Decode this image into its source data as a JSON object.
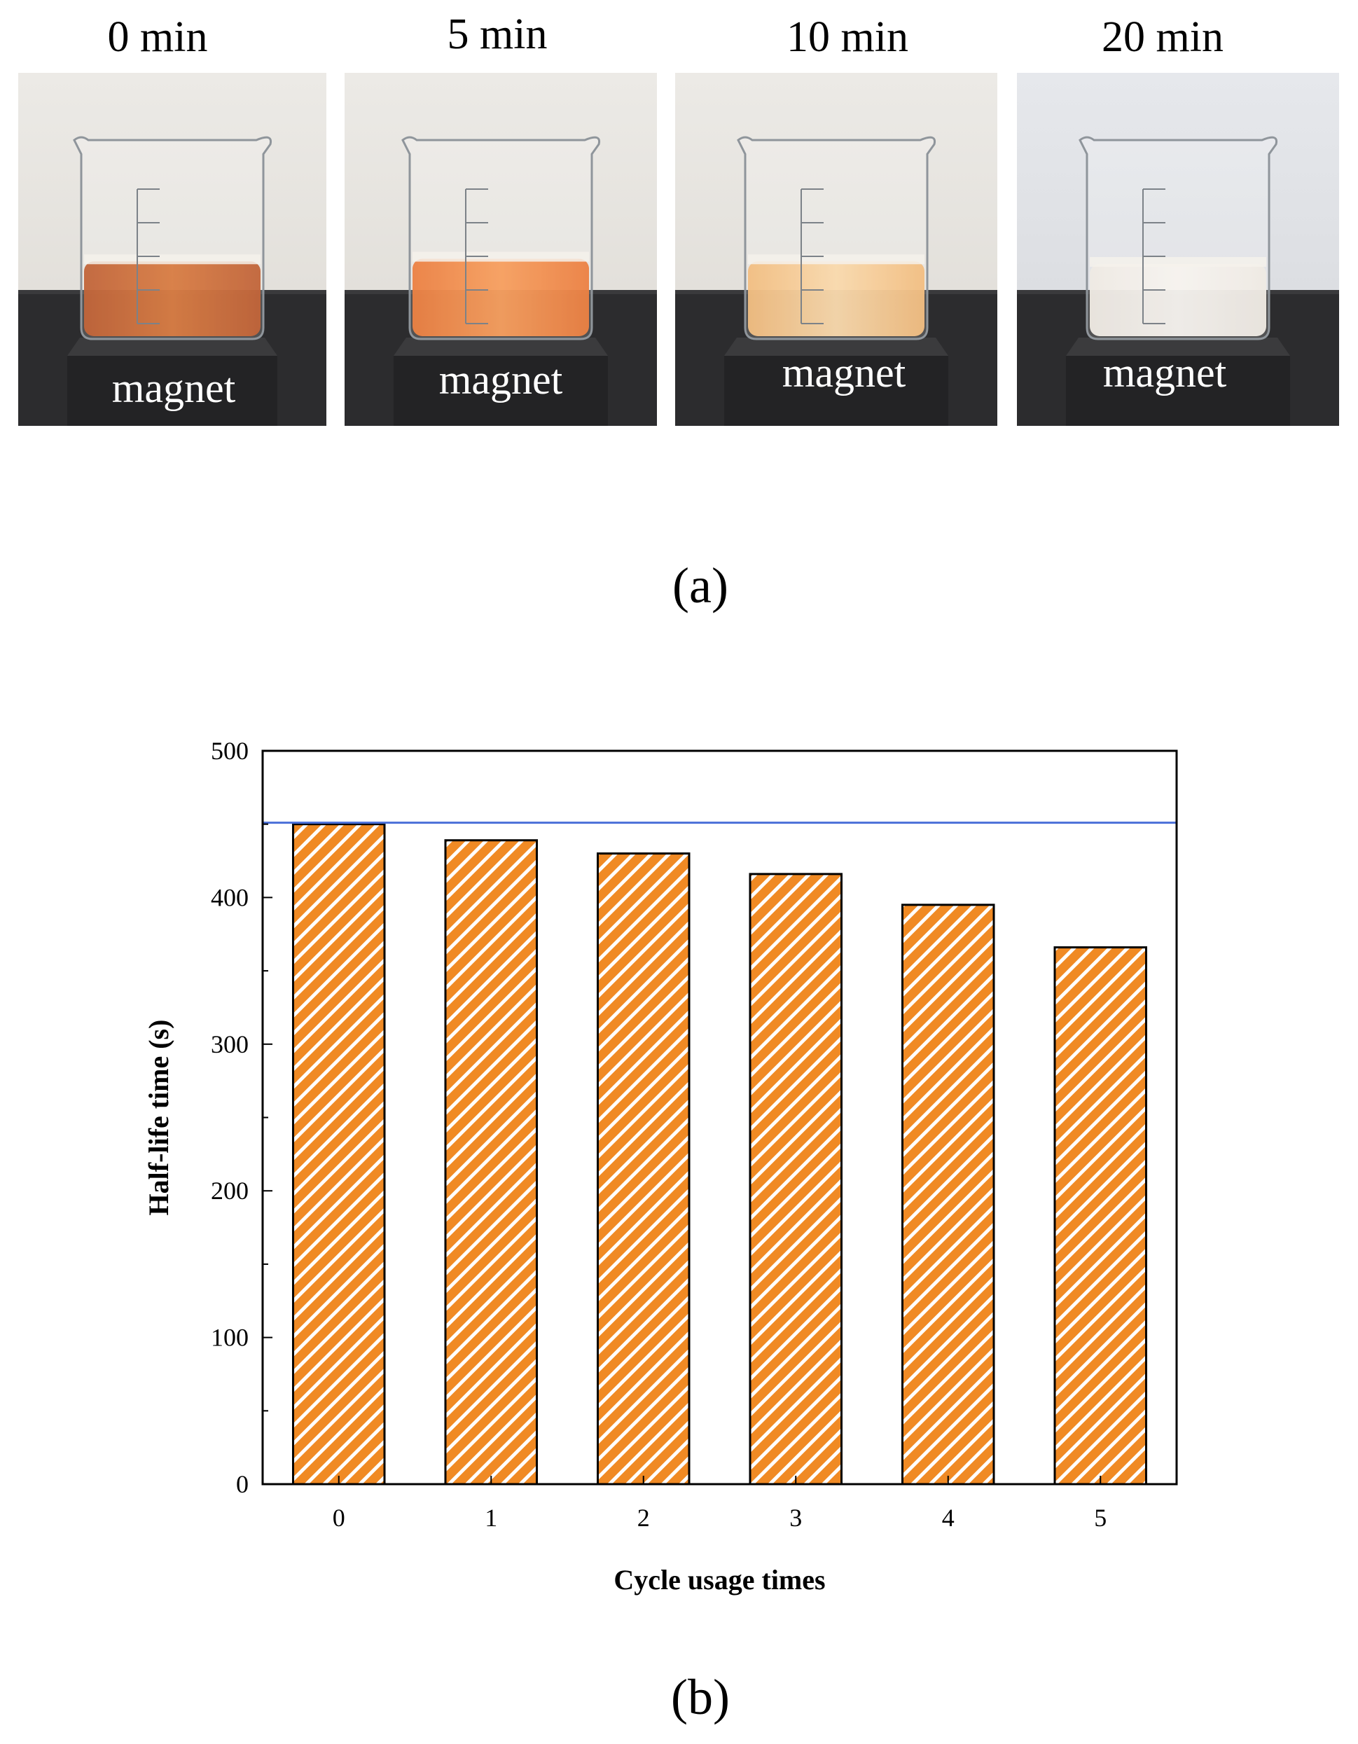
{
  "panel_a": {
    "label": "(a)",
    "photos": [
      {
        "time": "0 min",
        "magnet": "magnet",
        "liquid": "#b4430f",
        "liquid_light": "#d0601a",
        "level": 0.6
      },
      {
        "time": "5 min",
        "magnet": "magnet",
        "liquid": "#e8651a",
        "liquid_light": "#f58a3c",
        "level": 0.62
      },
      {
        "time": "10 min",
        "magnet": "magnet",
        "liquid": "#f0b066",
        "liquid_light": "#f8d19b",
        "level": 0.6
      },
      {
        "time": "20 min",
        "magnet": "magnet",
        "liquid": "#ece6de",
        "liquid_light": "#f5f1ec",
        "level": 0.58
      }
    ]
  },
  "panel_b": {
    "label": "(b)"
  },
  "chart_data": {
    "type": "bar",
    "categories": [
      "0",
      "1",
      "2",
      "3",
      "4",
      "5"
    ],
    "values": [
      450,
      439,
      430,
      416,
      395,
      366
    ],
    "xlabel": "Cycle usage times",
    "ylabel": "Half-life time (s)",
    "ylim": [
      0,
      500
    ],
    "yticks": [
      "0",
      "100",
      "200",
      "300",
      "400",
      "500"
    ],
    "reference_line": 451,
    "bar_color": "#f08a24",
    "reference_color": "#4a6fd8",
    "grid": false
  }
}
